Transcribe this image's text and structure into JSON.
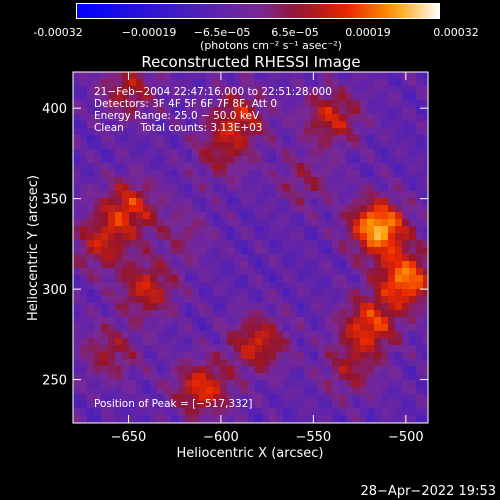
{
  "chart_data": {
    "type": "heatmap",
    "title": "Reconstructed RHESSI Image",
    "xlabel": "Heliocentric X (arcsec)",
    "ylabel": "Heliocentric Y (arcsec)",
    "xlim": [
      -680,
      -488
    ],
    "ylim": [
      226,
      420
    ],
    "xticks": [
      -650,
      -600,
      -550,
      -500
    ],
    "yticks": [
      250,
      300,
      350,
      400
    ],
    "xtick_labels": [
      "−650",
      "−600",
      "−550",
      "−500"
    ],
    "ytick_labels": [
      "250",
      "300",
      "350",
      "400"
    ],
    "colorbar": {
      "range": [
        -0.00032,
        0.00032
      ],
      "tick_labels": [
        "-0.00032",
        "−0.00019",
        "−6.5e−05",
        "6.5e−05",
        "0.00019",
        "0.00032"
      ],
      "unit_label": "(photons cm⁻² s⁻¹ asec⁻²)"
    },
    "peak": [
      -517,
      332
    ],
    "hotspots": [
      {
        "x": -515,
        "y": 334,
        "value": 0.00032
      },
      {
        "x": -500,
        "y": 305,
        "value": 0.00027
      },
      {
        "x": -540,
        "y": 395,
        "value": 0.00018
      },
      {
        "x": -520,
        "y": 280,
        "value": 0.00022
      },
      {
        "x": -650,
        "y": 345,
        "value": 0.0002
      },
      {
        "x": -665,
        "y": 325,
        "value": 0.00016
      },
      {
        "x": -640,
        "y": 300,
        "value": 0.00018
      },
      {
        "x": -590,
        "y": 395,
        "value": 0.00017
      },
      {
        "x": -600,
        "y": 375,
        "value": 0.00012
      },
      {
        "x": -650,
        "y": 410,
        "value": 0.00015
      },
      {
        "x": -580,
        "y": 270,
        "value": 0.00019
      },
      {
        "x": -610,
        "y": 245,
        "value": 0.00021
      },
      {
        "x": -660,
        "y": 265,
        "value": 0.00013
      },
      {
        "x": -555,
        "y": 360,
        "value": 0.0001
      },
      {
        "x": -530,
        "y": 255,
        "value": 0.00012
      },
      {
        "x": -620,
        "y": 330,
        "value": 8e-05
      }
    ],
    "annotations": {
      "time": "21−Feb−2004 22:47:16.000 to 22:51:28.000",
      "detectors": "Detectors: 3F 4F 5F 6F 7F 8F, Att 0",
      "energy": "Energy Range: 25.0 − 50.0 keV",
      "clean": "Clean     Total counts: 3.13E+03",
      "peak_text": "Position of Peak = [−517,332]"
    }
  },
  "footer": {
    "date": "28−Apr−2022 19:53"
  }
}
